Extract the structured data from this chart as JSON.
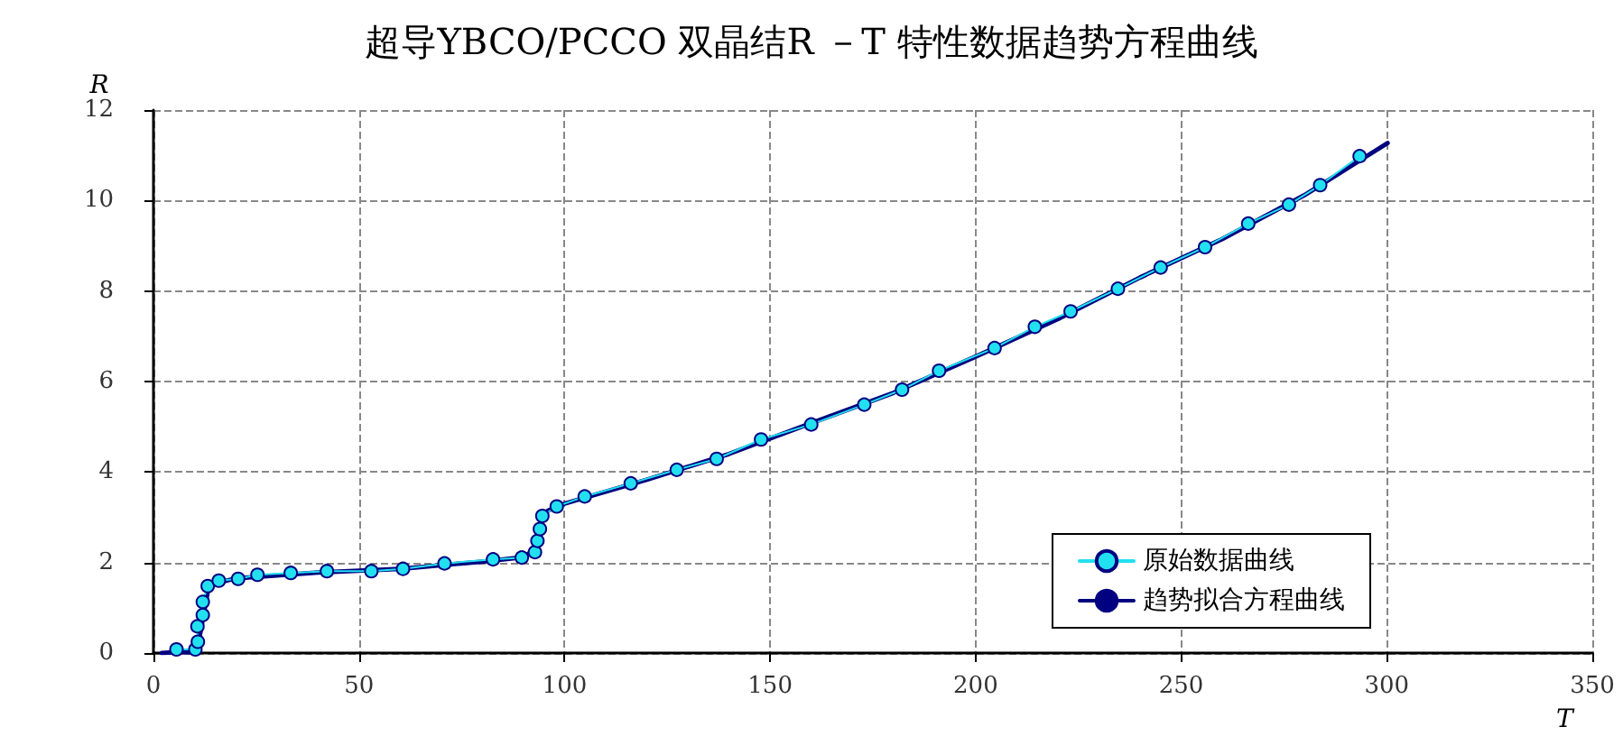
{
  "chart_data": {
    "type": "line",
    "title": "超导YBCO/PCCO 双晶结R －T 特性数据趋势方程曲线",
    "xlabel": "T",
    "ylabel": "R",
    "xlim": [
      0,
      350
    ],
    "xticks": [
      0,
      50,
      100,
      150,
      200,
      250,
      300,
      350
    ],
    "ylim": [
      0,
      12
    ],
    "yticks": [
      0,
      2,
      4,
      6,
      8,
      10,
      12
    ],
    "grid": true,
    "legend": "bottom right",
    "series": [
      {
        "name": "原始数据曲线",
        "color": "#22e0f0",
        "marker": "circle",
        "x": [
          5.6,
          10.2,
          10.8,
          10.7,
          12.0,
          12.0,
          13.2,
          15.9,
          20.6,
          25.3,
          33.4,
          42.2,
          53.0,
          60.7,
          70.8,
          82.6,
          89.6,
          92.8,
          93.4,
          94.0,
          94.6,
          98.1,
          104.9,
          116.1,
          127.3,
          137.0,
          147.8,
          160.0,
          172.9,
          182.1,
          191.1,
          204.6,
          214.4,
          223.1,
          234.6,
          245.0,
          255.8,
          266.3,
          276.2,
          283.8,
          293.4
        ],
        "values": [
          0.08,
          0.08,
          0.25,
          0.59,
          0.84,
          1.13,
          1.48,
          1.6,
          1.64,
          1.73,
          1.77,
          1.81,
          1.81,
          1.86,
          1.98,
          2.07,
          2.11,
          2.23,
          2.48,
          2.74,
          3.03,
          3.24,
          3.46,
          3.75,
          4.05,
          4.29,
          4.72,
          5.05,
          5.49,
          5.82,
          6.24,
          6.74,
          7.21,
          7.55,
          8.05,
          8.52,
          8.97,
          9.49,
          9.91,
          10.34,
          10.98
        ]
      },
      {
        "name": "趋势拟合方程曲线",
        "color": "#000080",
        "marker": "none",
        "x": [
          2,
          5.6,
          10.5,
          11.5,
          12.5,
          13.5,
          20,
          40,
          60,
          80,
          90,
          93,
          94.5,
          96,
          100,
          120,
          140,
          160,
          180,
          200,
          220,
          240,
          260,
          280,
          300.2
        ],
        "values": [
          0,
          0.02,
          0.02,
          0.5,
          1.0,
          1.5,
          1.65,
          1.78,
          1.86,
          2.02,
          2.12,
          2.3,
          3.0,
          3.15,
          3.3,
          3.83,
          4.4,
          5.08,
          5.75,
          6.55,
          7.38,
          8.3,
          9.15,
          10.12,
          11.27
        ]
      }
    ]
  }
}
